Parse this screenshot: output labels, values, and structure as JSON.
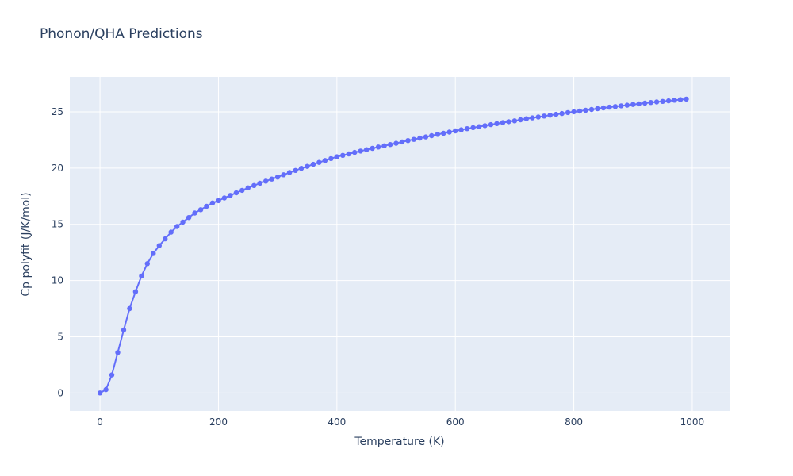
{
  "figure": {
    "title": "Phonon/QHA Predictions"
  },
  "colors": {
    "series_line": "#636efa",
    "plot_background": "#e5ecf6",
    "grid": "#ffffff",
    "text": "#2a3f5f",
    "paper_background": "#ffffff"
  },
  "chart_data": {
    "type": "line",
    "mode": "lines+markers",
    "title": "Phonon/QHA Predictions",
    "xlabel": "Temperature (K)",
    "ylabel": "Cp polyfit (J/K/mol)",
    "grid": true,
    "legend": "none",
    "xlim": [
      -51,
      1063
    ],
    "ylim": [
      -1.6,
      28.1
    ],
    "xticks": [
      0,
      200,
      400,
      600,
      800,
      1000
    ],
    "yticks": [
      0,
      5,
      10,
      15,
      20,
      25
    ],
    "x": [
      0,
      10,
      20,
      30,
      40,
      50,
      60,
      70,
      80,
      90,
      100,
      110,
      120,
      130,
      140,
      150,
      160,
      170,
      180,
      190,
      200,
      210,
      220,
      230,
      240,
      250,
      260,
      270,
      280,
      290,
      300,
      310,
      320,
      330,
      340,
      350,
      360,
      370,
      380,
      390,
      400,
      410,
      420,
      430,
      440,
      450,
      460,
      470,
      480,
      490,
      500,
      510,
      520,
      530,
      540,
      550,
      560,
      570,
      580,
      590,
      600,
      610,
      620,
      630,
      640,
      650,
      660,
      670,
      680,
      690,
      700,
      710,
      720,
      730,
      740,
      750,
      760,
      770,
      780,
      790,
      800,
      810,
      820,
      830,
      840,
      850,
      860,
      870,
      880,
      890,
      900,
      910,
      920,
      930,
      940,
      950,
      960,
      970,
      980,
      990
    ],
    "y": [
      0.0,
      0.3,
      1.6,
      3.6,
      5.6,
      7.5,
      9.0,
      10.4,
      11.5,
      12.4,
      13.1,
      13.7,
      14.3,
      14.8,
      15.2,
      15.6,
      16.0,
      16.3,
      16.6,
      16.9,
      17.1,
      17.34,
      17.57,
      17.8,
      18.02,
      18.24,
      18.45,
      18.65,
      18.84,
      19.02,
      19.2,
      19.4,
      19.6,
      19.79,
      19.97,
      20.15,
      20.33,
      20.5,
      20.67,
      20.84,
      21.0,
      21.13,
      21.26,
      21.39,
      21.51,
      21.63,
      21.75,
      21.87,
      21.98,
      22.09,
      22.2,
      22.32,
      22.44,
      22.55,
      22.66,
      22.77,
      22.88,
      22.99,
      23.09,
      23.2,
      23.3,
      23.4,
      23.5,
      23.59,
      23.68,
      23.77,
      23.86,
      23.95,
      24.04,
      24.12,
      24.2,
      24.29,
      24.38,
      24.46,
      24.54,
      24.62,
      24.7,
      24.78,
      24.85,
      24.93,
      25.0,
      25.07,
      25.14,
      25.21,
      25.28,
      25.35,
      25.41,
      25.47,
      25.53,
      25.59,
      25.65,
      25.71,
      25.77,
      25.83,
      25.88,
      25.93,
      25.98,
      26.03,
      26.08,
      26.13
    ]
  }
}
